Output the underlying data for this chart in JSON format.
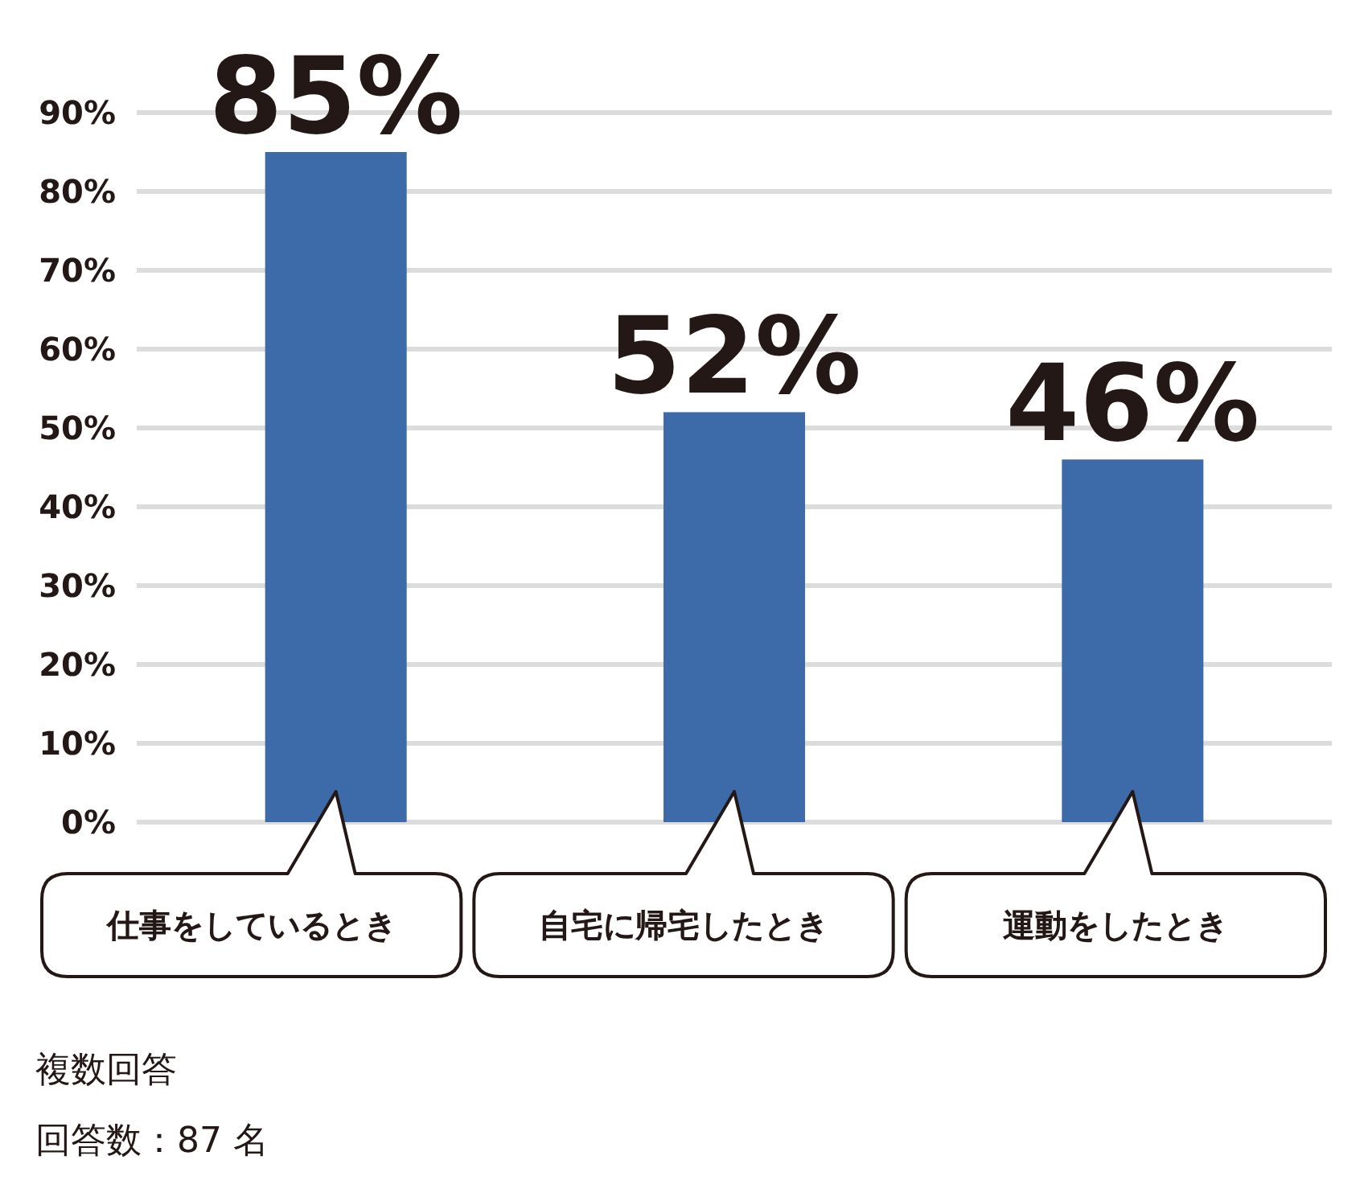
{
  "chart_data": {
    "type": "bar",
    "categories": [
      "仕事をしているとき",
      "自宅に帰宅したとき",
      "運動をしたとき"
    ],
    "values": [
      85,
      52,
      46
    ],
    "value_labels": [
      "85%",
      "52%",
      "46%"
    ],
    "color": "#3d6aa9",
    "ylim": [
      0,
      90
    ],
    "yticks": [
      {
        "value": 0,
        "label": "0%"
      },
      {
        "value": 10,
        "label": "10%"
      },
      {
        "value": 20,
        "label": "20%"
      },
      {
        "value": 30,
        "label": "30%"
      },
      {
        "value": 40,
        "label": "40%"
      },
      {
        "value": 50,
        "label": "50%"
      },
      {
        "value": 60,
        "label": "60%"
      },
      {
        "value": 70,
        "label": "70%"
      },
      {
        "value": 80,
        "label": "80%"
      },
      {
        "value": 90,
        "label": "90%"
      }
    ],
    "grid": "y",
    "annotations": [
      "複数回答",
      "回答数：87 名"
    ]
  }
}
